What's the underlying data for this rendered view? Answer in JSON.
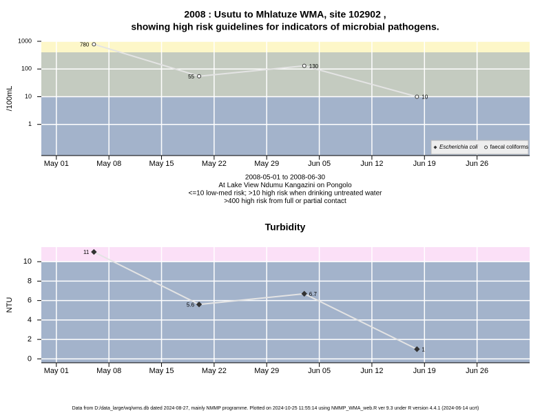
{
  "chart_data": [
    {
      "type": "line",
      "title": [
        "2008 : Usutu to Mhlatuze WMA, site 102902 ,",
        "showing high risk guidelines for indicators of microbial pathogens."
      ],
      "ylabel": "/100mL",
      "log": true,
      "x": [
        "2008-05-06",
        "2008-05-20",
        "2008-06-03",
        "2008-06-18"
      ],
      "xlim": [
        "2008-04-29",
        "2008-07-03"
      ],
      "xticks": [
        {
          "value": "2008-05-01",
          "label": "May 01"
        },
        {
          "value": "2008-05-08",
          "label": "May 08"
        },
        {
          "value": "2008-05-15",
          "label": "May 15"
        },
        {
          "value": "2008-05-22",
          "label": "May 22"
        },
        {
          "value": "2008-05-29",
          "label": "May 29"
        },
        {
          "value": "2008-06-05",
          "label": "Jun 05"
        },
        {
          "value": "2008-06-12",
          "label": "Jun 12"
        },
        {
          "value": "2008-06-19",
          "label": "Jun 19"
        },
        {
          "value": "2008-06-26",
          "label": "Jun 26"
        }
      ],
      "ylim": [
        0.075,
        1000
      ],
      "yticks": [
        1,
        10,
        100,
        1000
      ],
      "bands": [
        {
          "from": 400,
          "to": 1000,
          "color": "#fdf7c8"
        },
        {
          "from": 10,
          "to": 400,
          "color": "#c4cbc0"
        },
        {
          "from": 0.075,
          "to": 10,
          "color": "#a3b3cb"
        }
      ],
      "grid": true,
      "legend": "bottom right",
      "series": [
        {
          "name": "Escherichia coli",
          "color": "#333333",
          "marker": "diamond",
          "values": [
            null,
            null,
            null,
            null
          ]
        },
        {
          "name": "faecal coliforms",
          "color": "#333333",
          "marker": "circle",
          "values": [
            780,
            55,
            130,
            10
          ]
        }
      ],
      "notes": [
        "2008-05-01 to 2008-06-30",
        "At Lake View Ndumu Kangazini on Pongolo",
        "<=10 low-med risk; >10 high risk when drinking untreated water",
        ">400 high risk from full or partial contact"
      ]
    },
    {
      "type": "line",
      "title": [
        "Turbidity"
      ],
      "ylabel": "NTU",
      "log": false,
      "x": [
        "2008-05-06",
        "2008-05-20",
        "2008-06-03",
        "2008-06-18"
      ],
      "xlim": [
        "2008-04-29",
        "2008-07-03"
      ],
      "xticks": [
        {
          "value": "2008-05-01",
          "label": "May 01"
        },
        {
          "value": "2008-05-08",
          "label": "May 08"
        },
        {
          "value": "2008-05-15",
          "label": "May 15"
        },
        {
          "value": "2008-05-22",
          "label": "May 22"
        },
        {
          "value": "2008-05-29",
          "label": "May 29"
        },
        {
          "value": "2008-06-05",
          "label": "Jun 05"
        },
        {
          "value": "2008-06-12",
          "label": "Jun 12"
        },
        {
          "value": "2008-06-19",
          "label": "Jun 19"
        },
        {
          "value": "2008-06-26",
          "label": "Jun 26"
        }
      ],
      "ylim": [
        -0.4,
        11.5
      ],
      "yticks": [
        0,
        2,
        4,
        6,
        8,
        10
      ],
      "bands": [
        {
          "from": 10,
          "to": 11.5,
          "color": "#fbe0f7"
        },
        {
          "from": -0.4,
          "to": 10,
          "color": "#a3b3cb"
        }
      ],
      "grid": true,
      "series": [
        {
          "color": "#333333",
          "marker": "diamond",
          "values": [
            11,
            5.6,
            6.7,
            1
          ]
        }
      ]
    }
  ],
  "footer": "Data from D:/data_large/wq/wms.db dated 2024-08-27, mainly NMMP programme. Plotted on 2024-10-25 11:55:14 using NMMP_WMA_web.R ver 9.3 under R version 4.4.1 (2024-06-14 ucrt)"
}
